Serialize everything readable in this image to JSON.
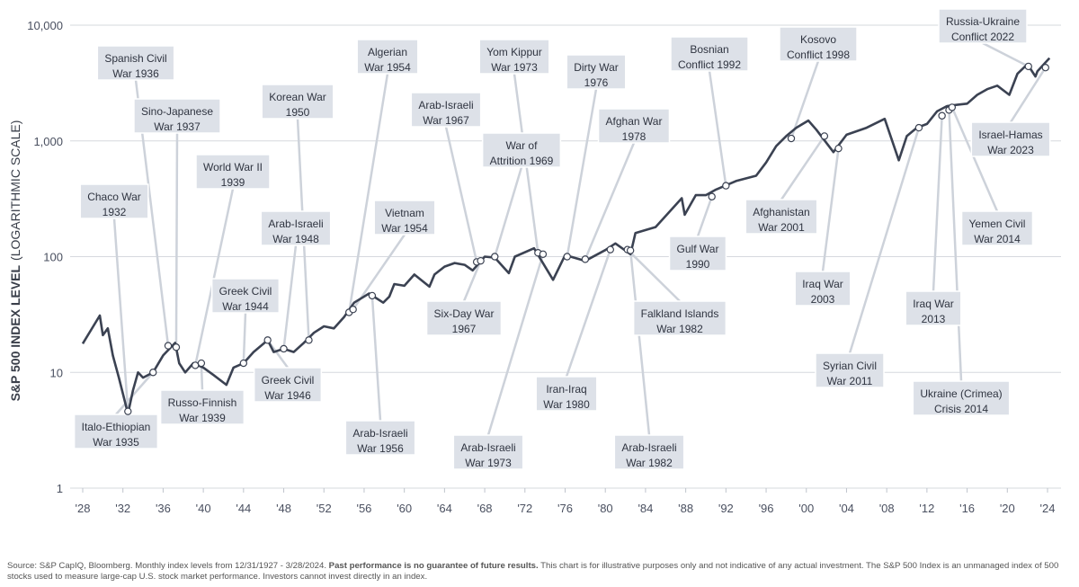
{
  "chart_data": {
    "type": "line",
    "y_label": "S&P 500 INDEX LEVEL",
    "y_label_note": "(LOGARITHMIC SCALE)",
    "log_scale": true,
    "grid": true,
    "color": "#3b4252",
    "xlim": [
      1928,
      2024
    ],
    "xticks": [
      {
        "value": 1928,
        "label": "'28"
      },
      {
        "value": 1932,
        "label": "'32"
      },
      {
        "value": 1936,
        "label": "'36"
      },
      {
        "value": 1940,
        "label": "'40"
      },
      {
        "value": 1944,
        "label": "'44"
      },
      {
        "value": 1948,
        "label": "'48"
      },
      {
        "value": 1952,
        "label": "'52"
      },
      {
        "value": 1956,
        "label": "'56"
      },
      {
        "value": 1960,
        "label": "'60"
      },
      {
        "value": 1964,
        "label": "'64"
      },
      {
        "value": 1968,
        "label": "'68"
      },
      {
        "value": 1972,
        "label": "'72"
      },
      {
        "value": 1976,
        "label": "'76"
      },
      {
        "value": 1980,
        "label": "'80"
      },
      {
        "value": 1984,
        "label": "'84"
      },
      {
        "value": 1988,
        "label": "'88"
      },
      {
        "value": 1992,
        "label": "'92"
      },
      {
        "value": 1996,
        "label": "'96"
      },
      {
        "value": 2000,
        "label": "'00"
      },
      {
        "value": 2004,
        "label": "'04"
      },
      {
        "value": 2008,
        "label": "'08"
      },
      {
        "value": 2012,
        "label": "'12"
      },
      {
        "value": 2016,
        "label": "'16"
      },
      {
        "value": 2020,
        "label": "'20"
      },
      {
        "value": 2024,
        "label": "'24"
      }
    ],
    "ylim": [
      1,
      10000
    ],
    "yticks": [
      1,
      10,
      100,
      {
        "value": 1000,
        "label": "1,000"
      },
      {
        "value": 10000,
        "label": "10,000"
      }
    ],
    "x": [
      1928,
      1929.7,
      1930,
      1930.5,
      1931,
      1931.6,
      1932.5,
      1933,
      1933.5,
      1934,
      1935,
      1936,
      1937.2,
      1937.6,
      1938.2,
      1939,
      1940,
      1941,
      1942.3,
      1943,
      1944,
      1945,
      1946.4,
      1947,
      1948,
      1949,
      1950,
      1951,
      1952,
      1953,
      1954,
      1955,
      1956.5,
      1957.9,
      1958.5,
      1959,
      1960,
      1961,
      1962.5,
      1963,
      1964,
      1965,
      1966,
      1966.8,
      1968,
      1969,
      1970.4,
      1971,
      1972.9,
      1974.8,
      1976,
      1978,
      1980,
      1981,
      1982.5,
      1983,
      1985,
      1987.6,
      1987.9,
      1989,
      1990,
      1991,
      1993,
      1995,
      1996,
      1997,
      1998,
      1999,
      2000.2,
      2001,
      2002.7,
      2004,
      2006,
      2007.8,
      2009.2,
      2010,
      2011,
      2012,
      2013,
      2014,
      2015,
      2016,
      2017,
      2018,
      2019,
      2020.2,
      2021,
      2022,
      2022.8,
      2023,
      2024.2
    ],
    "values": [
      17.7,
      31,
      21,
      24,
      14,
      9,
      4.4,
      7,
      10,
      9,
      10,
      14,
      18,
      12,
      10,
      12,
      11,
      9.5,
      7.8,
      11,
      12,
      15,
      19,
      15,
      16,
      15,
      18,
      22,
      25,
      24,
      30,
      40,
      48,
      40,
      45,
      58,
      56,
      70,
      55,
      70,
      82,
      88,
      85,
      76,
      100,
      98,
      72,
      100,
      118,
      63,
      103,
      92,
      114,
      130,
      105,
      160,
      180,
      320,
      230,
      340,
      340,
      380,
      450,
      500,
      650,
      900,
      1100,
      1300,
      1500,
      1250,
      800,
      1130,
      1300,
      1550,
      680,
      1100,
      1300,
      1400,
      1800,
      2000,
      2050,
      2100,
      2500,
      2800,
      3000,
      2500,
      3800,
      4600,
      3600,
      4000,
      5200
    ],
    "annotations": [
      {
        "label": [
          "Chaco War",
          "1932"
        ],
        "x": 1932.5,
        "value": 4.6
      },
      {
        "label": [
          "Spanish Civil",
          "War 1936"
        ],
        "x": 1936.5,
        "value": 17
      },
      {
        "label": [
          "Sino-Japanese",
          "War 1937"
        ],
        "x": 1937.3,
        "value": 16.5
      },
      {
        "label": [
          "Italo-Ethiopian",
          "War 1935"
        ],
        "x": 1935,
        "value": 10
      },
      {
        "label": [
          "Russo-Finnish",
          "War 1939"
        ],
        "x": 1939.8,
        "value": 12
      },
      {
        "label": [
          "World War II",
          "1939"
        ],
        "x": 1939.2,
        "value": 11.5
      },
      {
        "label": [
          "Greek Civil",
          "War 1944"
        ],
        "x": 1944,
        "value": 12
      },
      {
        "label": [
          "Greek Civil",
          "War 1946"
        ],
        "x": 1946.4,
        "value": 19
      },
      {
        "label": [
          "Arab-Israeli",
          "War 1948"
        ],
        "x": 1948,
        "value": 16
      },
      {
        "label": [
          "Korean War",
          "1950"
        ],
        "x": 1950.5,
        "value": 19
      },
      {
        "label": [
          "Algerian",
          "War 1954"
        ],
        "x": 1954.5,
        "value": 33
      },
      {
        "label": [
          "Vietnam",
          "War 1954"
        ],
        "x": 1954.9,
        "value": 35
      },
      {
        "label": [
          "Arab-Israeli",
          "War 1956"
        ],
        "x": 1956.8,
        "value": 46
      },
      {
        "label": [
          "Arab-Israeli",
          "War 1967"
        ],
        "x": 1967.2,
        "value": 90
      },
      {
        "label": [
          "Six-Day War",
          "1967"
        ],
        "x": 1967.6,
        "value": 92
      },
      {
        "label": [
          "Yom Kippur",
          "War 1973"
        ],
        "x": 1973.3,
        "value": 108
      },
      {
        "label": [
          "War of",
          "Attrition 1969"
        ],
        "x": 1969,
        "value": 100
      },
      {
        "label": [
          "Arab-Israeli",
          "War 1973"
        ],
        "x": 1973.8,
        "value": 105
      },
      {
        "label": [
          "Dirty War",
          "1976"
        ],
        "x": 1976.2,
        "value": 100
      },
      {
        "label": [
          "Afghan War",
          "1978"
        ],
        "x": 1978,
        "value": 95
      },
      {
        "label": [
          "Iran-Iraq",
          "War 1980"
        ],
        "x": 1980.5,
        "value": 115
      },
      {
        "label": [
          "Falkland Islands",
          "War 1982"
        ],
        "x": 1982.2,
        "value": 115
      },
      {
        "label": [
          "Arab-Israeli",
          "War 1982"
        ],
        "x": 1982.5,
        "value": 113
      },
      {
        "label": [
          "Bosnian",
          "Conflict 1992"
        ],
        "x": 1992,
        "value": 410
      },
      {
        "label": [
          "Gulf War",
          "1990"
        ],
        "x": 1990.6,
        "value": 330
      },
      {
        "label": [
          "Kosovo",
          "Conflict 1998"
        ],
        "x": 1998.5,
        "value": 1050
      },
      {
        "label": [
          "Afghanistan",
          "War 2001"
        ],
        "x": 2001.8,
        "value": 1100
      },
      {
        "label": [
          "Iraq War",
          "2003"
        ],
        "x": 2003.2,
        "value": 860
      },
      {
        "label": [
          "Syrian Civil",
          "War 2011"
        ],
        "x": 2011.2,
        "value": 1300
      },
      {
        "label": [
          "Iraq War",
          "2013"
        ],
        "x": 2013.5,
        "value": 1650
      },
      {
        "label": [
          "Ukraine (Crimea)",
          "Crisis 2014"
        ],
        "x": 2014.2,
        "value": 1850
      },
      {
        "label": [
          "Yemen Civil",
          "War 2014"
        ],
        "x": 2014.5,
        "value": 1950
      },
      {
        "label": [
          "Russia-Ukraine",
          "Conflict 2022"
        ],
        "x": 2022.1,
        "value": 4400
      },
      {
        "label": [
          "Israel-Hamas",
          "War 2023"
        ],
        "x": 2023.8,
        "value": 4300
      }
    ],
    "footnote_pre": "Source: S&P CapIQ, Bloomberg. Monthly index levels from 12/31/1927 - 3/28/2024.",
    "footnote_bold": "Past performance is no guarantee of future results.",
    "footnote_post": "This chart is for illustrative purposes only and not indicative of any actual investment. The S&P 500 Index is an unmanaged index of 500 stocks used to measure large-cap U.S. stock market performance. Investors cannot invest directly in an index."
  }
}
